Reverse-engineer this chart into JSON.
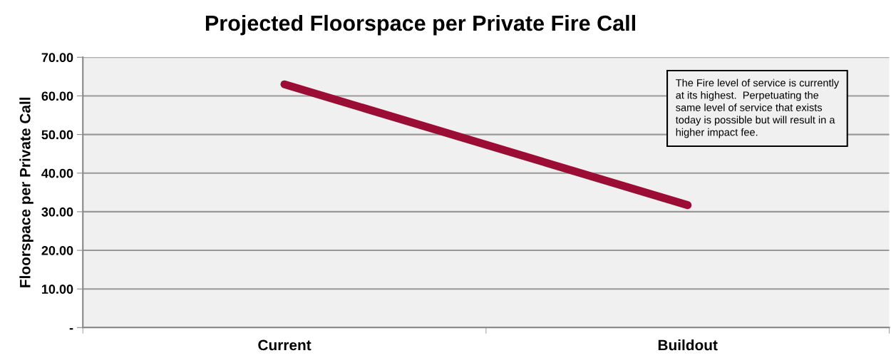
{
  "chart_data": {
    "type": "line",
    "title": "Projected Floorspace per Private Fire Call",
    "ylabel": "Floorspace per Private Call",
    "categories": [
      "Current",
      "Buildout"
    ],
    "series": [
      {
        "color": "#9b0d35",
        "values": [
          63.0,
          31.7
        ]
      }
    ],
    "ylim": [
      0,
      70
    ],
    "yticks": [
      {
        "value": 0,
        "label": "-"
      },
      {
        "value": 10,
        "label": "10.00"
      },
      {
        "value": 20,
        "label": "20.00"
      },
      {
        "value": 30,
        "label": "30.00"
      },
      {
        "value": 40,
        "label": "40.00"
      },
      {
        "value": 50,
        "label": "50.00"
      },
      {
        "value": 60,
        "label": "60.00"
      },
      {
        "value": 70,
        "label": "70.00"
      }
    ],
    "grid": "y",
    "marker": "none",
    "line_style": "solid",
    "annotations": [
      "The Fire level of service is currently\nat its highest.  Perpetuating the\nsame level of service that exists\ntoday is possible but will result in a\nhigher impact fee."
    ]
  }
}
